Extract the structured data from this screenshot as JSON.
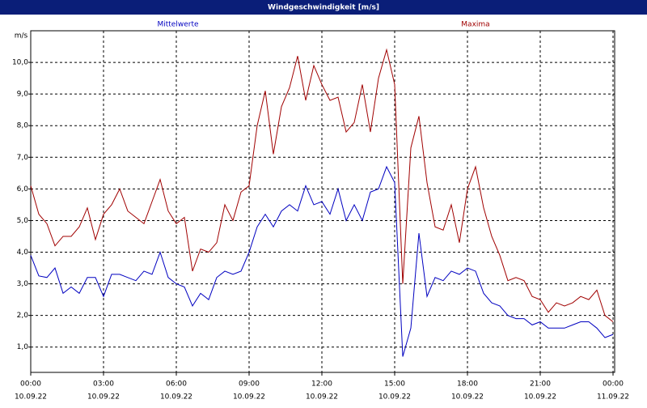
{
  "chart_data": {
    "type": "line",
    "title": "Windgeschwindigkeit [m/s]",
    "y_label": "m/s",
    "x": [
      0,
      20,
      40,
      60,
      80,
      100,
      120,
      140,
      160,
      180,
      200,
      220,
      240,
      260,
      280,
      300,
      320,
      340,
      360,
      380,
      400,
      420,
      440,
      460,
      480,
      500,
      520,
      540,
      560,
      580,
      600,
      620,
      640,
      660,
      680,
      700,
      720,
      740,
      760,
      780,
      800,
      820,
      840,
      860,
      880,
      900,
      920,
      940,
      960,
      980,
      1000,
      1020,
      1040,
      1060,
      1080,
      1100,
      1120,
      1140,
      1160,
      1180,
      1200,
      1220,
      1240,
      1260,
      1280,
      1300,
      1320,
      1340,
      1360,
      1380,
      1400,
      1420,
      1440
    ],
    "xlim": [
      0,
      1440
    ],
    "xticks": [
      {
        "value": 0,
        "label": "00:00"
      },
      {
        "value": 180,
        "label": "03:00"
      },
      {
        "value": 360,
        "label": "06:00"
      },
      {
        "value": 540,
        "label": "09:00"
      },
      {
        "value": 720,
        "label": "12:00"
      },
      {
        "value": 900,
        "label": "15:00"
      },
      {
        "value": 1080,
        "label": "18:00"
      },
      {
        "value": 1260,
        "label": "21:00"
      },
      {
        "value": 1440,
        "label": "00:00"
      }
    ],
    "xtick_dates": [
      "10.09.22",
      "10.09.22",
      "10.09.22",
      "10.09.22",
      "10.09.22",
      "10.09.22",
      "10.09.22",
      "10.09.22",
      "11.09.22"
    ],
    "ylim": [
      0.2,
      11
    ],
    "yticks": [
      {
        "value": 1,
        "label": "1,0"
      },
      {
        "value": 2,
        "label": "2,0"
      },
      {
        "value": 3,
        "label": "3,0"
      },
      {
        "value": 4,
        "label": "4,0"
      },
      {
        "value": 5,
        "label": "5,0"
      },
      {
        "value": 6,
        "label": "6,0"
      },
      {
        "value": 7,
        "label": "7,0"
      },
      {
        "value": 8,
        "label": "8,0"
      },
      {
        "value": 9,
        "label": "9,0"
      },
      {
        "value": 10,
        "label": "10,0"
      }
    ],
    "grid": true,
    "series": [
      {
        "name": "Mittelwerte",
        "color": "#0000c0",
        "values": [
          3.9,
          3.25,
          3.2,
          3.5,
          2.7,
          2.9,
          2.7,
          3.2,
          3.2,
          2.6,
          3.3,
          3.3,
          3.2,
          3.1,
          3.4,
          3.3,
          4.0,
          3.2,
          3.0,
          2.9,
          2.3,
          2.7,
          2.5,
          3.2,
          3.4,
          3.3,
          3.4,
          4.0,
          4.8,
          5.2,
          4.8,
          5.3,
          5.5,
          5.3,
          6.1,
          5.5,
          5.6,
          5.2,
          6.0,
          5.0,
          5.5,
          5.0,
          5.9,
          6.0,
          6.7,
          6.2,
          0.7,
          1.6,
          4.6,
          2.6,
          3.2,
          3.1,
          3.4,
          3.3,
          3.5,
          3.4,
          2.7,
          2.4,
          2.3,
          2.0,
          1.9,
          1.9,
          1.7,
          1.8,
          1.6,
          1.6,
          1.6,
          1.7,
          1.8,
          1.8,
          1.6,
          1.3,
          1.4
        ]
      },
      {
        "name": "Maxima",
        "color": "#a00000",
        "values": [
          6.1,
          5.2,
          4.9,
          4.2,
          4.5,
          4.5,
          4.8,
          5.4,
          4.4,
          5.2,
          5.5,
          6.0,
          5.3,
          5.1,
          4.9,
          5.6,
          6.3,
          5.3,
          4.9,
          5.1,
          3.4,
          4.1,
          4.0,
          4.3,
          5.5,
          5.0,
          5.9,
          6.1,
          8.0,
          9.1,
          7.1,
          8.6,
          9.2,
          10.2,
          8.8,
          9.9,
          9.3,
          8.8,
          8.9,
          7.8,
          8.1,
          9.3,
          7.8,
          9.5,
          10.4,
          9.3,
          3.0,
          7.3,
          8.3,
          6.2,
          4.8,
          4.7,
          5.5,
          4.3,
          6.0,
          6.7,
          5.4,
          4.5,
          3.9,
          3.1,
          3.2,
          3.1,
          2.6,
          2.5,
          2.1,
          2.4,
          2.3,
          2.4,
          2.6,
          2.5,
          2.8,
          2.0,
          1.8
        ]
      }
    ]
  }
}
